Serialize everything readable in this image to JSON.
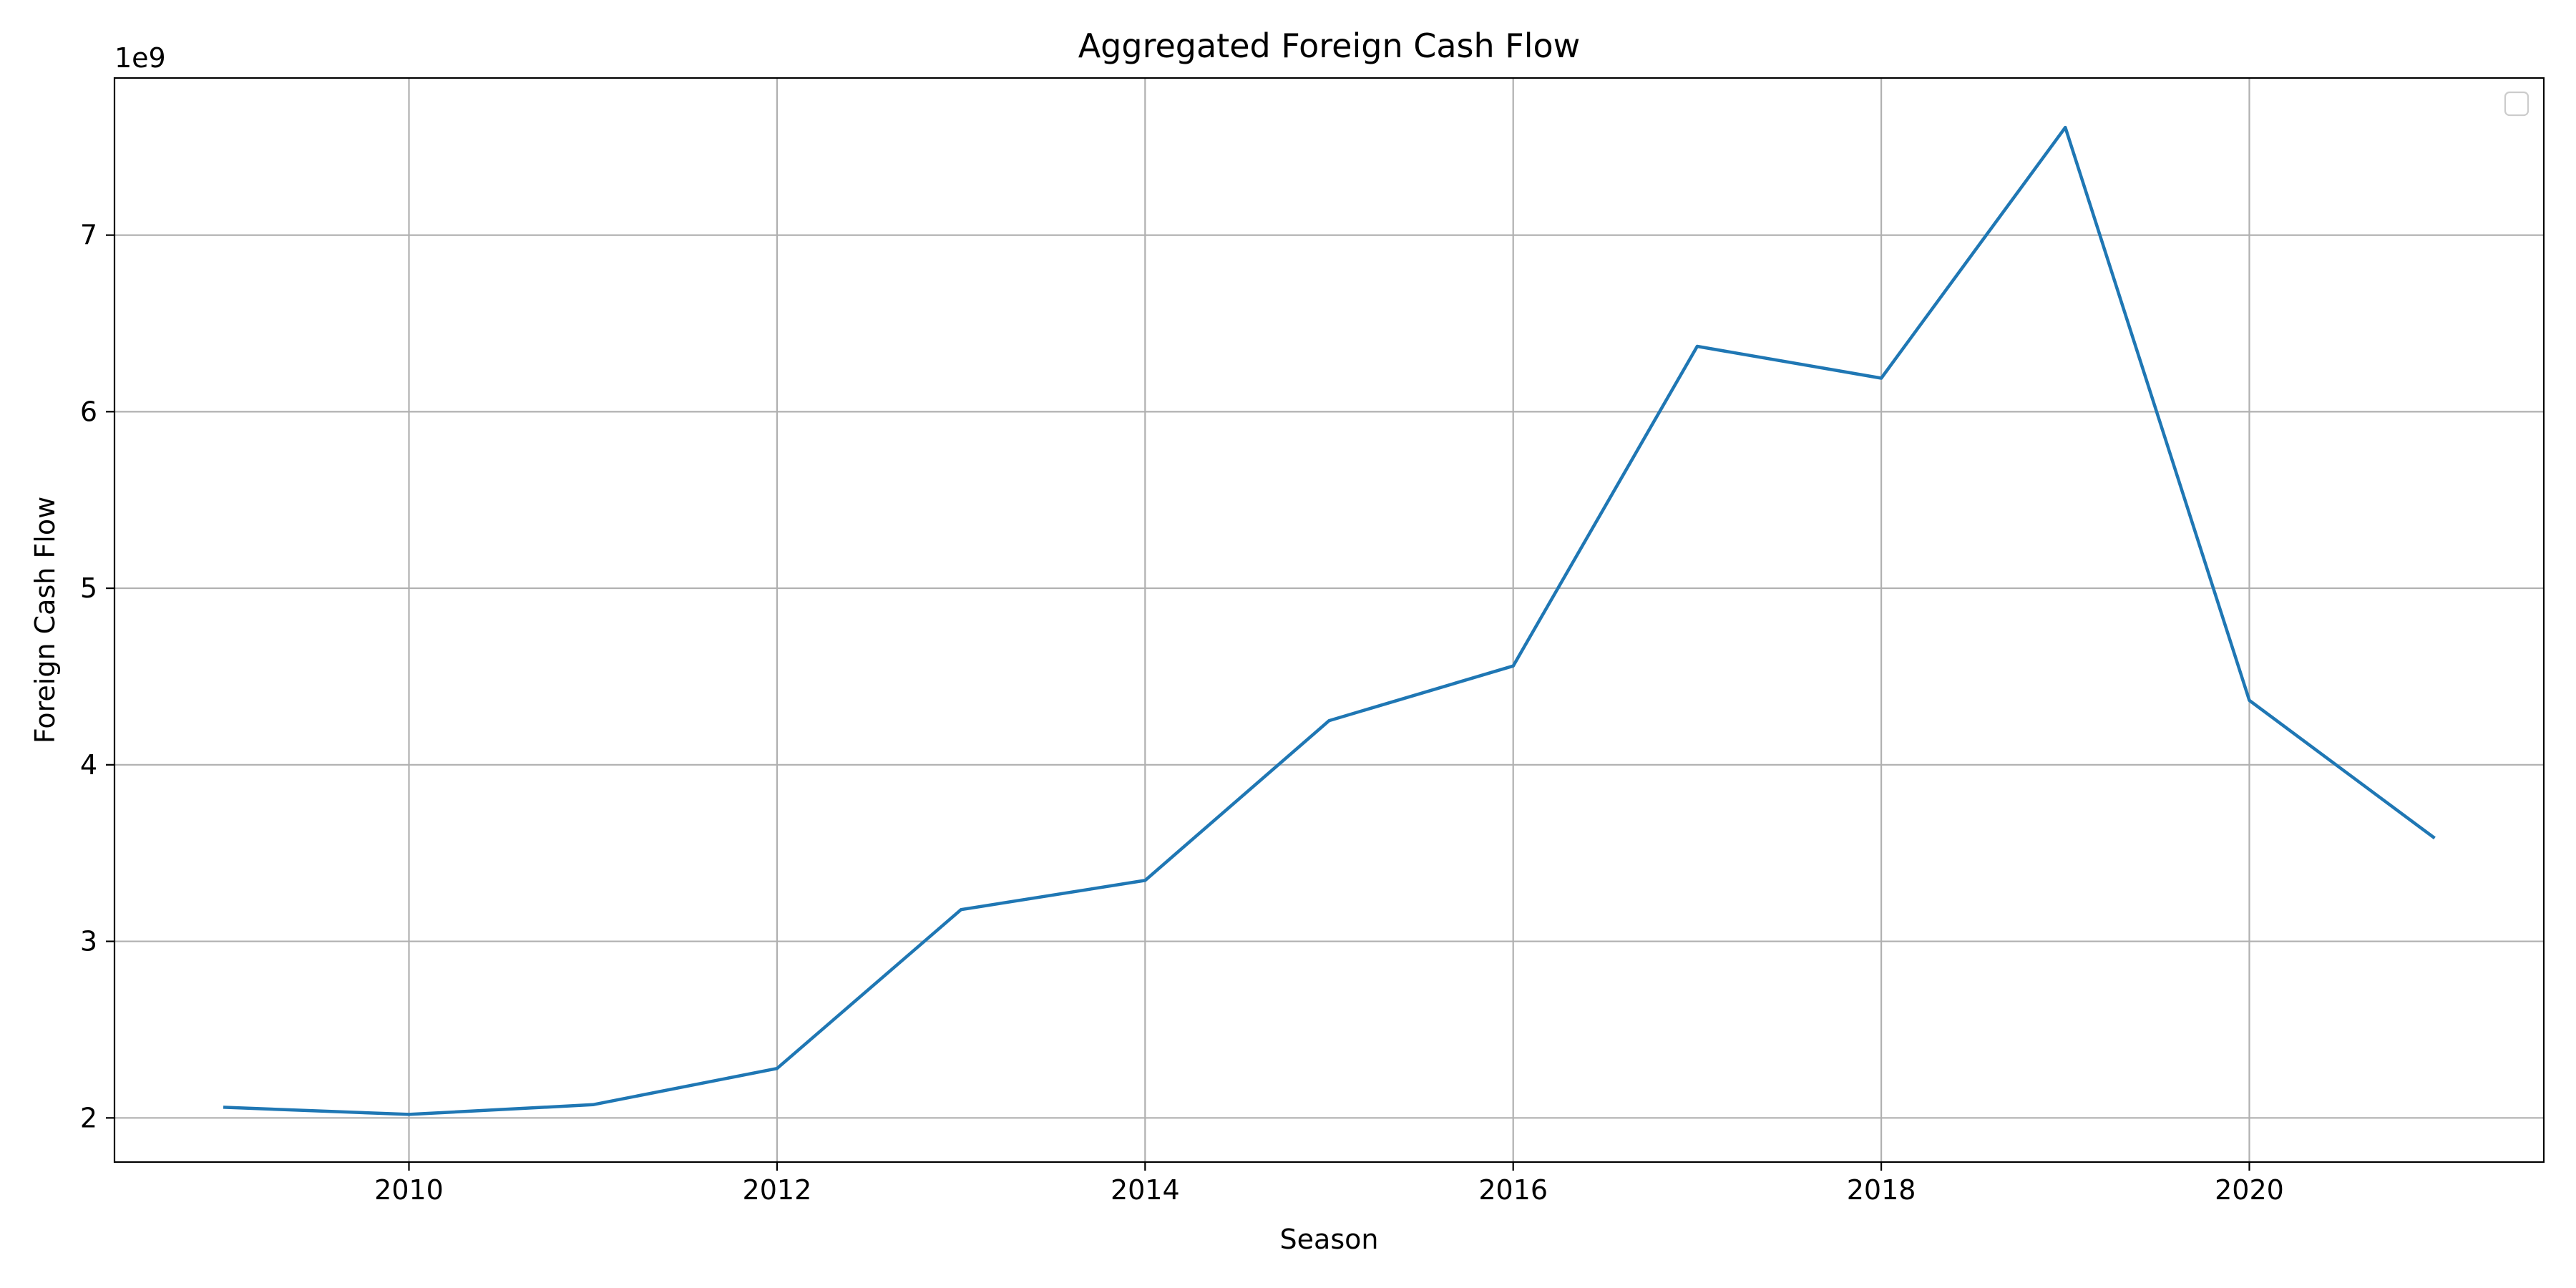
{
  "chart_data": {
    "type": "line",
    "title": "Aggregated Foreign Cash Flow",
    "xlabel": "Season",
    "ylabel": "Foreign Cash Flow",
    "y_offset_label": "1e9",
    "y_scale_factor": 1000000000,
    "xlim": [
      2008.4,
      2021.6
    ],
    "ylim": [
      1750000000,
      7890000000
    ],
    "xticks": [
      2010,
      2012,
      2014,
      2016,
      2018,
      2020
    ],
    "yticks": [
      2000000000,
      3000000000,
      4000000000,
      5000000000,
      6000000000,
      7000000000
    ],
    "grid": true,
    "legend": {
      "position": "upper right",
      "entries": []
    },
    "x": [
      2009,
      2010,
      2011,
      2012,
      2013,
      2014,
      2015,
      2016,
      2017,
      2018,
      2019,
      2020,
      2021
    ],
    "series": [
      {
        "color": "#1f77b4",
        "values": [
          2060000000,
          2020000000,
          2075000000,
          2280000000,
          3180000000,
          3345000000,
          4250000000,
          4560000000,
          6370000000,
          6190000000,
          7610000000,
          4365000000,
          3590000000
        ]
      }
    ]
  }
}
